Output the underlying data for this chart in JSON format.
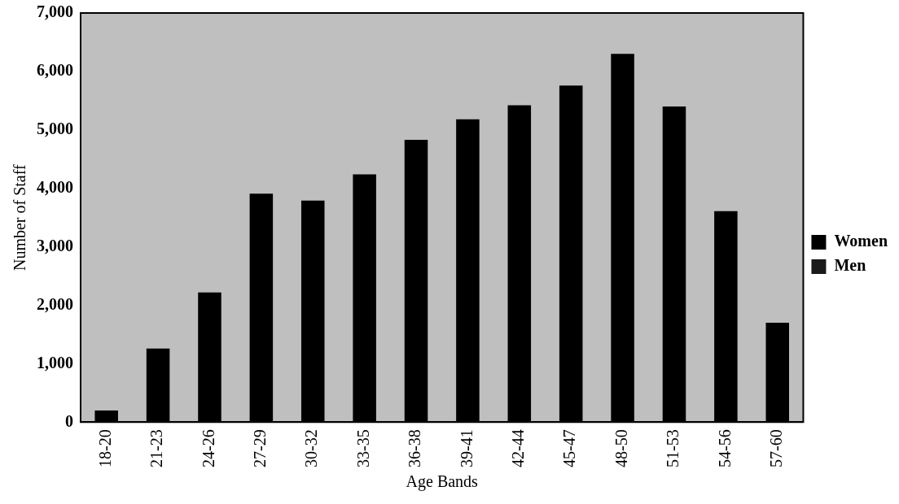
{
  "chart_data": {
    "type": "bar",
    "xlabel": "Age Bands",
    "ylabel": "Number of Staff",
    "categories": [
      "18-20",
      "21-23",
      "24-26",
      "27-29",
      "30-32",
      "33-35",
      "36-38",
      "39-41",
      "42-44",
      "45-47",
      "48-50",
      "51-53",
      "54-56",
      "57-60"
    ],
    "series": [
      {
        "name": "Women",
        "color": "#000000",
        "values": [
          200,
          1260,
          2220,
          3910,
          3790,
          4240,
          4830,
          5180,
          5420,
          5760,
          6300,
          5400,
          3610,
          1700
        ]
      },
      {
        "name": "Men",
        "color": "#1a1a1a",
        "values": [
          null,
          null,
          null,
          null,
          null,
          null,
          null,
          null,
          null,
          null,
          null,
          null,
          null,
          null
        ]
      }
    ],
    "stacked": true,
    "ylim": [
      0,
      7000
    ],
    "yticks": [
      0,
      {
        "value": 1000,
        "label": "1,000"
      },
      {
        "value": 2000,
        "label": "2,000"
      },
      {
        "value": 3000,
        "label": "3,000"
      },
      {
        "value": 4000,
        "label": "4,000"
      },
      {
        "value": 5000,
        "label": "5,000"
      },
      {
        "value": 6000,
        "label": "6,000"
      },
      {
        "value": 7000,
        "label": "7,000"
      }
    ],
    "grid": false,
    "legend": "right"
  }
}
